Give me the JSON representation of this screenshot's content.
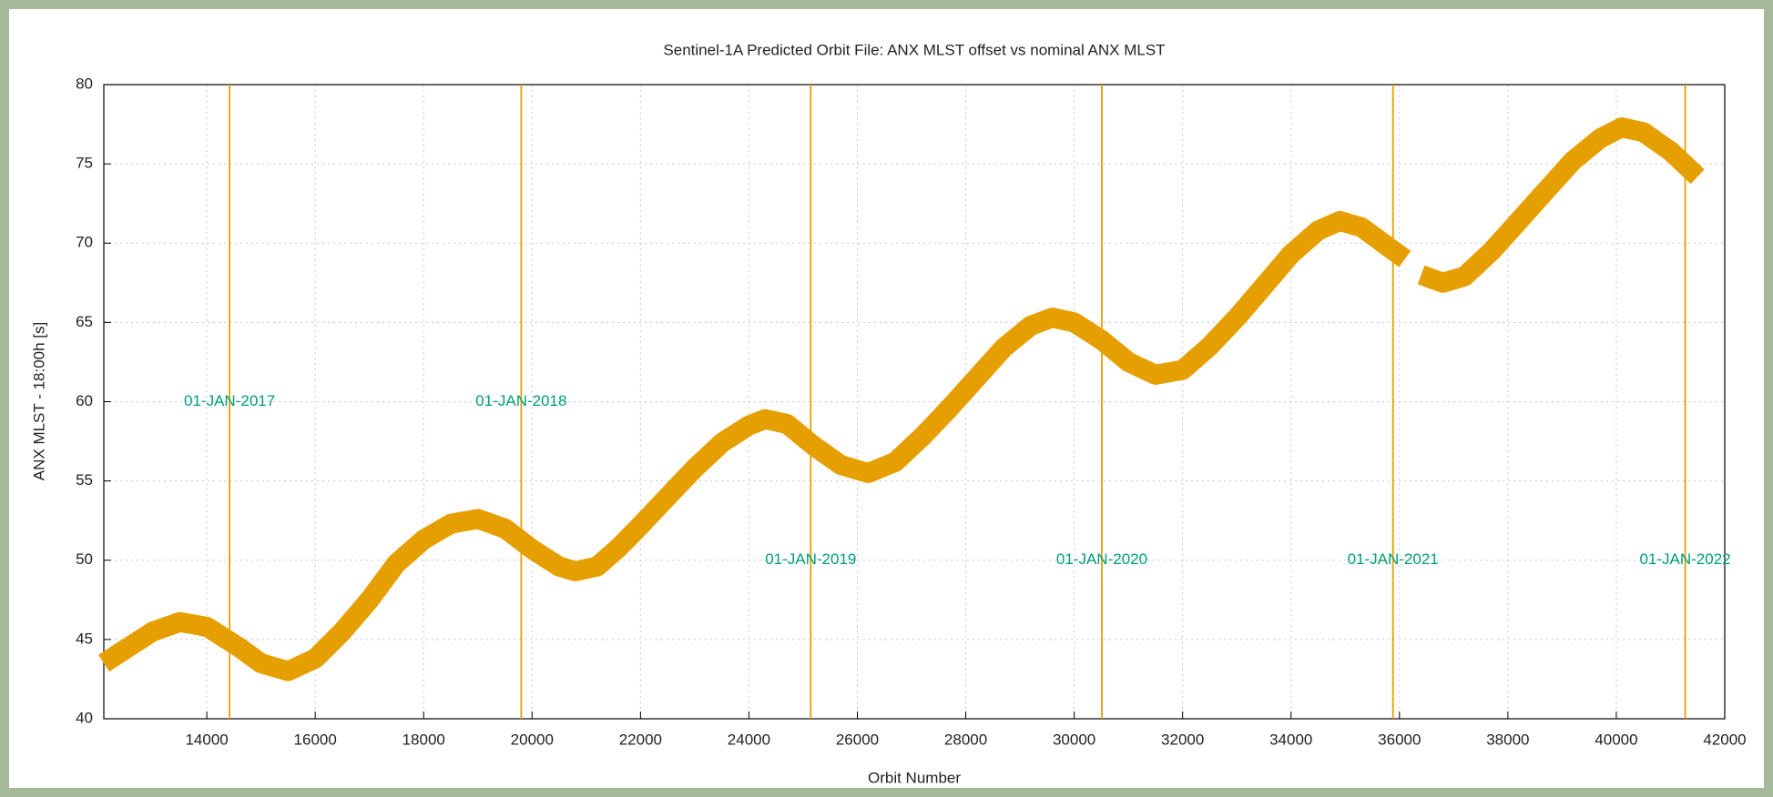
{
  "chart_data": {
    "type": "line",
    "title": "Sentinel-1A Predicted Orbit File: ANX MLST offset vs nominal ANX MLST",
    "xlabel": "Orbit Number",
    "ylabel": "ANX MLST - 18:00h [s]",
    "xlim": [
      12100,
      42000
    ],
    "ylim": [
      40,
      80
    ],
    "xticks": [
      14000,
      16000,
      18000,
      20000,
      22000,
      24000,
      26000,
      28000,
      30000,
      32000,
      34000,
      36000,
      38000,
      40000,
      42000
    ],
    "yticks": [
      40,
      45,
      50,
      55,
      60,
      65,
      70,
      75,
      80
    ],
    "grid": true,
    "x": [
      12100,
      13000,
      13500,
      14000,
      14600,
      15000,
      15500,
      16000,
      16500,
      17000,
      17500,
      18000,
      18500,
      19000,
      19500,
      20000,
      20500,
      20800,
      21200,
      21600,
      22000,
      22500,
      23000,
      23500,
      24000,
      24300,
      24700,
      25200,
      25700,
      26200,
      26700,
      27200,
      27700,
      28200,
      28700,
      29200,
      29600,
      30000,
      30500,
      31000,
      31500,
      32000,
      32500,
      33000,
      33500,
      34000,
      34500,
      34900,
      35300,
      35700,
      36100,
      36250,
      36400,
      36800,
      37200,
      37700,
      38200,
      38700,
      39200,
      39700,
      40100,
      40500,
      41000,
      41500
    ],
    "series": [
      {
        "name": "ANX MLST offset",
        "color": "#e69f00",
        "values": [
          43.5,
          45.5,
          46.1,
          45.8,
          44.5,
          43.5,
          43.0,
          43.8,
          45.5,
          47.5,
          49.8,
          51.3,
          52.3,
          52.6,
          52.0,
          50.7,
          49.6,
          49.3,
          49.6,
          50.8,
          52.2,
          54.0,
          55.8,
          57.4,
          58.5,
          58.9,
          58.6,
          57.2,
          56.0,
          55.5,
          56.2,
          57.8,
          59.6,
          61.5,
          63.4,
          64.8,
          65.3,
          65.0,
          63.9,
          62.5,
          61.7,
          62.0,
          63.5,
          65.3,
          67.3,
          69.3,
          70.8,
          71.4,
          71.0,
          70.0,
          69.0,
          null,
          68.0,
          67.5,
          67.9,
          69.5,
          71.4,
          73.3,
          75.2,
          76.6,
          77.3,
          77.0,
          75.8,
          74.2
        ]
      }
    ],
    "markers": [
      {
        "x": 14420,
        "y": 60,
        "label": "01-JAN-2017"
      },
      {
        "x": 19800,
        "y": 60,
        "label": "01-JAN-2018"
      },
      {
        "x": 25140,
        "y": 50,
        "label": "01-JAN-2019"
      },
      {
        "x": 30510,
        "y": 50,
        "label": "01-JAN-2020"
      },
      {
        "x": 35880,
        "y": 50,
        "label": "01-JAN-2021"
      },
      {
        "x": 41270,
        "y": 50,
        "label": "01-JAN-2022"
      }
    ],
    "marker_color": "#e69f00",
    "marker_label_color": "#009e73"
  }
}
